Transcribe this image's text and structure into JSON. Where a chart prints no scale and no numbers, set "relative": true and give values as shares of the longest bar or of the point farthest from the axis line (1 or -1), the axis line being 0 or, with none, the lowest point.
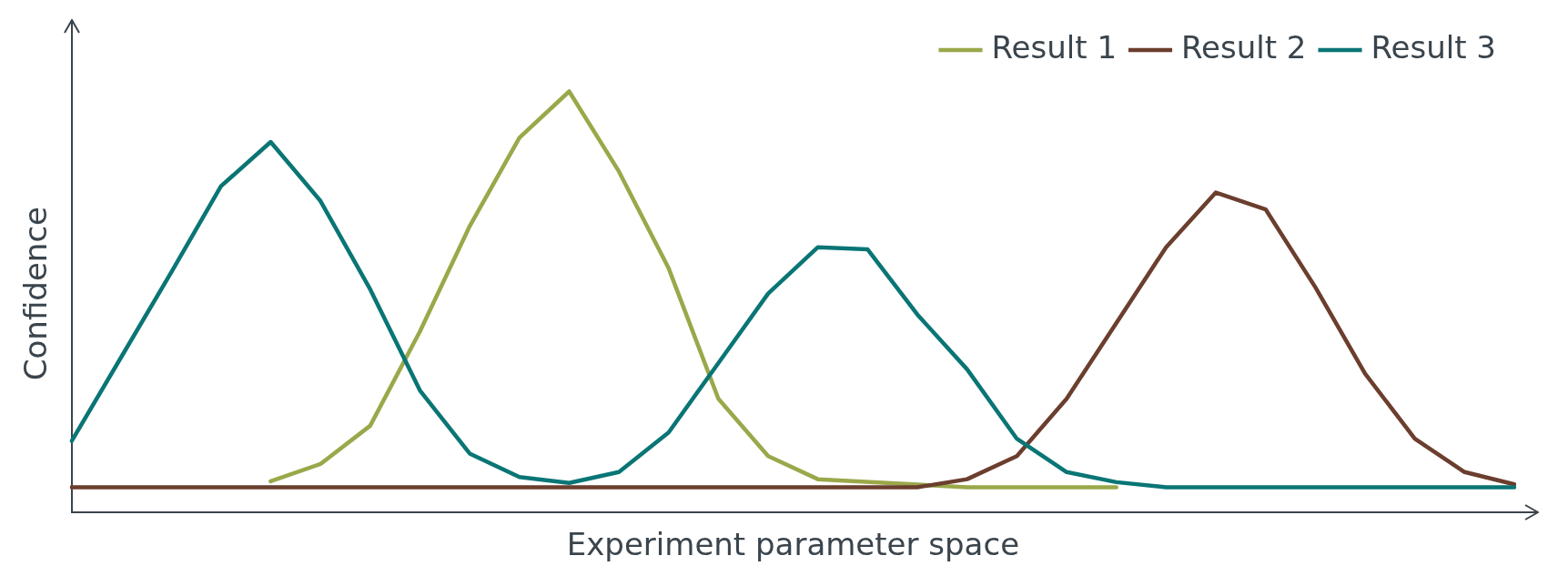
{
  "chart_data": {
    "type": "line",
    "relative": true,
    "xlabel": "Experiment parameter space",
    "ylabel": "Confidence",
    "legend": "top right",
    "grid": false,
    "marker": "none",
    "line_style": "solid",
    "categories": [
      null,
      null,
      null,
      null,
      null,
      null,
      null,
      null,
      null,
      null,
      null,
      null,
      null,
      null,
      null,
      null,
      null,
      null,
      null,
      null,
      null,
      null,
      null,
      null,
      null,
      null,
      null,
      null,
      null,
      null
    ],
    "series": [
      {
        "name": "Result 1",
        "color": "#9aa84a",
        "values": [
          null,
          null,
          null,
          null,
          0.074,
          0.115,
          0.206,
          0.43,
          0.68,
          0.89,
          1,
          0.81,
          0.58,
          0.27,
          0.134,
          0.079,
          null,
          null,
          0.06,
          0.06,
          0.06,
          0.06,
          null,
          null,
          null,
          null,
          null,
          null,
          null,
          null
        ]
      },
      {
        "name": "Result 2",
        "color": "#6b3e2e",
        "values": [
          0.06,
          0.06,
          0.06,
          0.06,
          0.06,
          0.06,
          0.06,
          0.06,
          0.06,
          0.06,
          0.06,
          0.06,
          0.06,
          0.06,
          0.06,
          0.06,
          0.06,
          0.06,
          0.079,
          0.134,
          0.27,
          0.45,
          0.63,
          0.76,
          0.72,
          0.535,
          0.33,
          0.175,
          0.096,
          0.067
        ]
      },
      {
        "name": "Result 3",
        "color": "#0a7575",
        "values": [
          0.17,
          0.37,
          0.57,
          0.775,
          0.88,
          0.74,
          0.53,
          0.29,
          0.14,
          0.084,
          0.07,
          0.096,
          0.19,
          0.355,
          0.52,
          0.63,
          0.625,
          0.47,
          0.34,
          0.175,
          0.096,
          0.072,
          0.06,
          0.06,
          0.06,
          0.06,
          0.06,
          0.06,
          0.06,
          0.06
        ]
      }
    ]
  }
}
